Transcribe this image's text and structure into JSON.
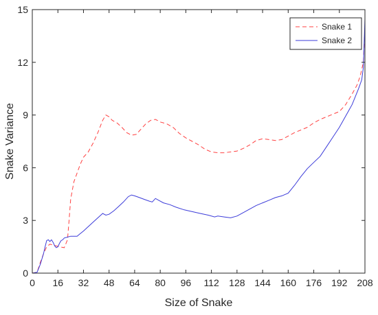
{
  "chart_data": {
    "type": "line",
    "title": "",
    "xlabel": "Size of Snake",
    "ylabel": "Snake Variance",
    "xlim": [
      0,
      208
    ],
    "ylim": [
      0,
      15
    ],
    "xticks": [
      0,
      16,
      32,
      48,
      64,
      80,
      96,
      112,
      128,
      144,
      160,
      176,
      192,
      208
    ],
    "yticks": [
      0,
      3,
      6,
      9,
      12,
      15
    ],
    "grid": false,
    "legend_position": "top-right",
    "series": [
      {
        "name": "Snake 1",
        "color": "#ff4040",
        "style": "dashed",
        "points": [
          [
            0,
            0
          ],
          [
            3,
            0.05
          ],
          [
            5,
            0.6
          ],
          [
            7,
            1.1
          ],
          [
            9,
            1.5
          ],
          [
            11,
            1.65
          ],
          [
            13,
            1.6
          ],
          [
            15,
            1.55
          ],
          [
            17,
            1.5
          ],
          [
            20,
            1.45
          ],
          [
            22,
            1.9
          ],
          [
            23,
            3.0
          ],
          [
            24,
            4.2
          ],
          [
            26,
            5.2
          ],
          [
            28,
            5.7
          ],
          [
            30,
            6.2
          ],
          [
            32,
            6.6
          ],
          [
            35,
            6.9
          ],
          [
            38,
            7.4
          ],
          [
            41,
            8.0
          ],
          [
            44,
            8.7
          ],
          [
            46,
            9.0
          ],
          [
            48,
            8.9
          ],
          [
            50,
            8.7
          ],
          [
            53,
            8.55
          ],
          [
            56,
            8.3
          ],
          [
            59,
            8.0
          ],
          [
            62,
            7.85
          ],
          [
            65,
            7.9
          ],
          [
            68,
            8.2
          ],
          [
            71,
            8.5
          ],
          [
            74,
            8.7
          ],
          [
            77,
            8.75
          ],
          [
            80,
            8.6
          ],
          [
            84,
            8.5
          ],
          [
            88,
            8.3
          ],
          [
            92,
            7.95
          ],
          [
            96,
            7.7
          ],
          [
            100,
            7.5
          ],
          [
            104,
            7.3
          ],
          [
            108,
            7.05
          ],
          [
            112,
            6.9
          ],
          [
            116,
            6.85
          ],
          [
            120,
            6.85
          ],
          [
            124,
            6.9
          ],
          [
            128,
            6.95
          ],
          [
            132,
            7.1
          ],
          [
            136,
            7.3
          ],
          [
            140,
            7.55
          ],
          [
            144,
            7.65
          ],
          [
            148,
            7.6
          ],
          [
            152,
            7.55
          ],
          [
            156,
            7.6
          ],
          [
            160,
            7.8
          ],
          [
            164,
            8.0
          ],
          [
            168,
            8.15
          ],
          [
            172,
            8.3
          ],
          [
            176,
            8.55
          ],
          [
            180,
            8.75
          ],
          [
            184,
            8.9
          ],
          [
            188,
            9.05
          ],
          [
            192,
            9.2
          ],
          [
            196,
            9.6
          ],
          [
            200,
            10.2
          ],
          [
            203,
            10.7
          ],
          [
            205,
            11.2
          ],
          [
            207,
            12.0
          ],
          [
            208,
            14.0
          ]
        ]
      },
      {
        "name": "Snake 2",
        "color": "#3b3bd9",
        "style": "solid",
        "points": [
          [
            0,
            0
          ],
          [
            3,
            0.05
          ],
          [
            5,
            0.5
          ],
          [
            7,
            1.1
          ],
          [
            8,
            1.5
          ],
          [
            9,
            1.85
          ],
          [
            10,
            1.9
          ],
          [
            11,
            1.8
          ],
          [
            12,
            1.9
          ],
          [
            13,
            1.75
          ],
          [
            14,
            1.55
          ],
          [
            15,
            1.45
          ],
          [
            16,
            1.5
          ],
          [
            17,
            1.7
          ],
          [
            18,
            1.85
          ],
          [
            19,
            1.9
          ],
          [
            20,
            2.0
          ],
          [
            22,
            2.05
          ],
          [
            24,
            2.1
          ],
          [
            26,
            2.1
          ],
          [
            28,
            2.1
          ],
          [
            30,
            2.25
          ],
          [
            32,
            2.4
          ],
          [
            35,
            2.65
          ],
          [
            38,
            2.9
          ],
          [
            41,
            3.15
          ],
          [
            44,
            3.4
          ],
          [
            46,
            3.3
          ],
          [
            48,
            3.35
          ],
          [
            51,
            3.55
          ],
          [
            54,
            3.8
          ],
          [
            57,
            4.05
          ],
          [
            60,
            4.35
          ],
          [
            62,
            4.45
          ],
          [
            64,
            4.4
          ],
          [
            67,
            4.3
          ],
          [
            70,
            4.2
          ],
          [
            73,
            4.1
          ],
          [
            75,
            4.05
          ],
          [
            77,
            4.25
          ],
          [
            79,
            4.15
          ],
          [
            82,
            4.0
          ],
          [
            86,
            3.9
          ],
          [
            90,
            3.75
          ],
          [
            95,
            3.6
          ],
          [
            100,
            3.5
          ],
          [
            105,
            3.4
          ],
          [
            110,
            3.3
          ],
          [
            114,
            3.2
          ],
          [
            116,
            3.25
          ],
          [
            120,
            3.2
          ],
          [
            124,
            3.15
          ],
          [
            128,
            3.25
          ],
          [
            132,
            3.45
          ],
          [
            136,
            3.65
          ],
          [
            140,
            3.85
          ],
          [
            144,
            4.0
          ],
          [
            148,
            4.15
          ],
          [
            152,
            4.3
          ],
          [
            156,
            4.4
          ],
          [
            160,
            4.55
          ],
          [
            164,
            5.0
          ],
          [
            168,
            5.5
          ],
          [
            172,
            5.95
          ],
          [
            176,
            6.3
          ],
          [
            180,
            6.65
          ],
          [
            184,
            7.2
          ],
          [
            188,
            7.75
          ],
          [
            192,
            8.3
          ],
          [
            196,
            8.95
          ],
          [
            200,
            9.6
          ],
          [
            204,
            10.5
          ],
          [
            206,
            11.0
          ],
          [
            207,
            11.7
          ],
          [
            208,
            14.5
          ]
        ]
      }
    ]
  }
}
